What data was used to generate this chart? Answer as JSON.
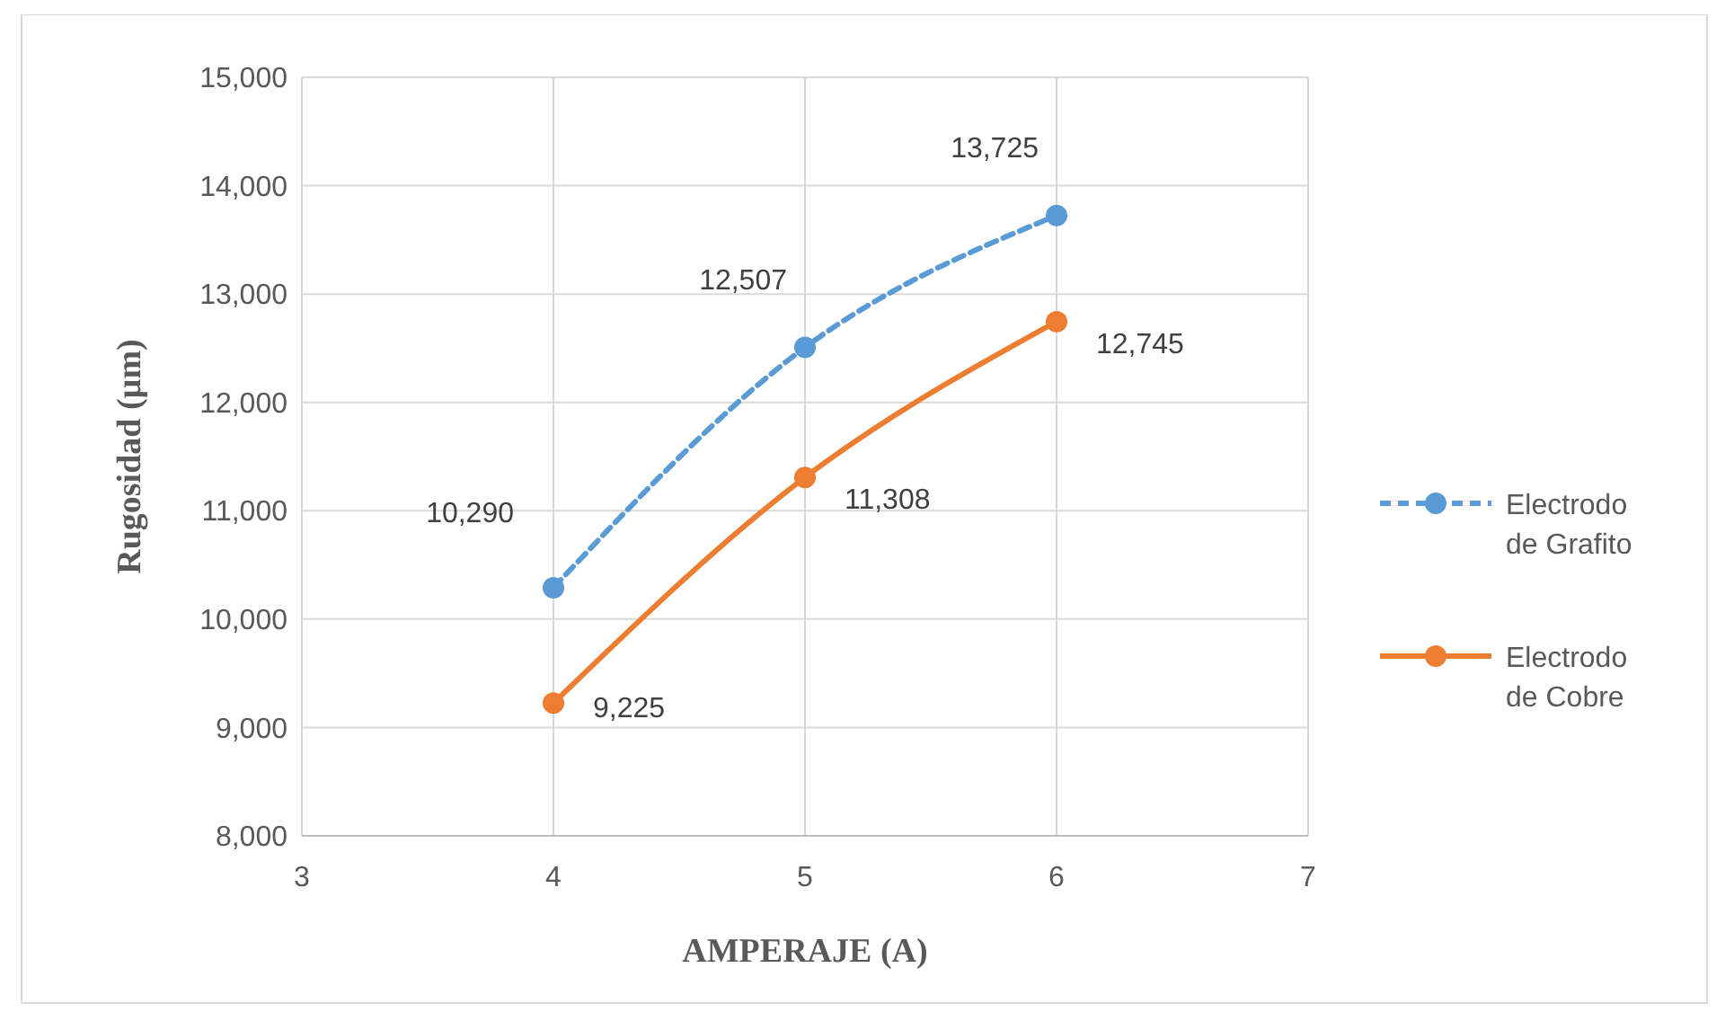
{
  "chart_data": {
    "type": "line",
    "xlabel": "AMPERAJE  (A)",
    "ylabel": "Rugosidad  (µm)",
    "x": [
      4,
      5,
      6
    ],
    "series": [
      {
        "name": "Electrodo de Grafito",
        "color": "#5b9bd5",
        "values": [
          10290,
          12507,
          13725
        ],
        "value_labels": [
          "10,290",
          "12,507",
          "13,725"
        ],
        "line_style": "dashed"
      },
      {
        "name": "Electrodo de Cobre",
        "color": "#ed7d31",
        "values": [
          9225,
          11308,
          12745
        ],
        "value_labels": [
          "9,225",
          "11,308",
          "12,745"
        ],
        "line_style": "solid"
      }
    ],
    "xlim": [
      3,
      7
    ],
    "xticks": [
      3,
      4,
      5,
      6,
      7
    ],
    "ylim": [
      8000,
      15000
    ],
    "yticks": [
      {
        "value": 8000,
        "label": "8,000"
      },
      {
        "value": 9000,
        "label": "9,000"
      },
      {
        "value": 10000,
        "label": "10,000"
      },
      {
        "value": 11000,
        "label": "11,000"
      },
      {
        "value": 12000,
        "label": "12,000"
      },
      {
        "value": 13000,
        "label": "13,000"
      },
      {
        "value": 14000,
        "label": "14,000"
      },
      {
        "value": 15000,
        "label": "15,000"
      }
    ],
    "grid": true,
    "marker": "circle",
    "legend": "right"
  }
}
